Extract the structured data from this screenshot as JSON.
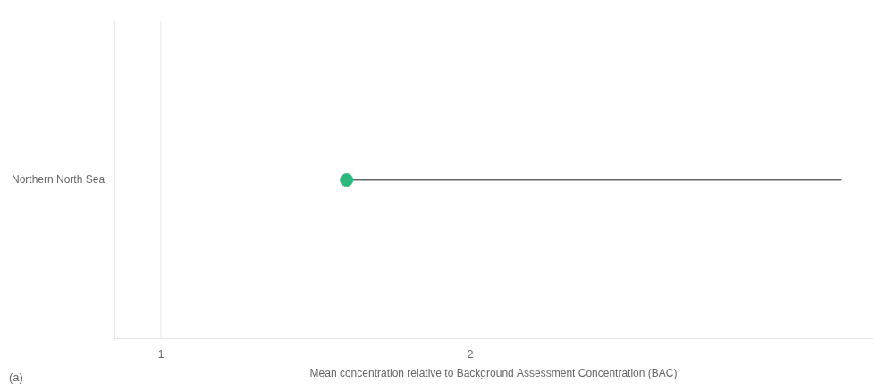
{
  "chart_data": {
    "type": "dot",
    "categories": [
      "Northern North Sea"
    ],
    "values": [
      1.6
    ],
    "line_ends": [
      3.2
    ],
    "reference_line": 1,
    "color": "#2db87d",
    "xlabel": "Mean concentration relative to Background Assessment Concentration (BAC)",
    "annotations": [
      "(a)"
    ],
    "xlim": [
      0.85,
      3.3
    ],
    "xticks": [
      1,
      2
    ],
    "grid": false
  }
}
